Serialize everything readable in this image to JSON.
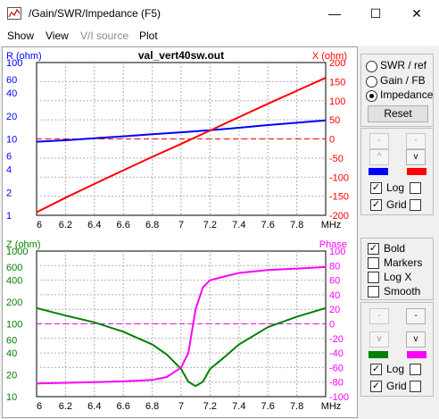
{
  "window": {
    "title": "/Gain/SWR/Impedance (F5)",
    "minimize_glyph": "—",
    "maximize_glyph": "☐",
    "close_glyph": "✕"
  },
  "menu": [
    "Show",
    "View",
    "V/I source",
    "Plot"
  ],
  "menu_disabled": [
    false,
    false,
    true,
    false
  ],
  "top_chart": {
    "title": "val_vert40sw.out",
    "left_label": "R (ohm)",
    "right_label": "X (ohm)",
    "left_ticks": [
      "100",
      "60",
      "40",
      "20",
      "10",
      "6",
      "4",
      "2",
      "1"
    ],
    "right_ticks": [
      "200",
      "150",
      "100",
      "50",
      "0",
      "-50",
      "-100",
      "-150",
      "-200"
    ],
    "x_ticks": [
      "6",
      "6.2",
      "6.4",
      "6.6",
      "6.8",
      "7",
      "7.2",
      "7.4",
      "7.6",
      "7.8",
      "MHz"
    ],
    "left_color": "#0000ff",
    "right_color": "#ff0000"
  },
  "bottom_chart": {
    "left_label": "Z (ohm)",
    "right_label": "Phase",
    "left_ticks": [
      "1000",
      "600",
      "400",
      "200",
      "100",
      "60",
      "40",
      "20",
      "10"
    ],
    "right_ticks": [
      "100",
      "80",
      "60",
      "40",
      "20",
      "0",
      "-20",
      "-40",
      "-60",
      "-80",
      "-100"
    ],
    "x_ticks": [
      "6",
      "6.2",
      "6.4",
      "6.6",
      "6.8",
      "7",
      "7.2",
      "7.4",
      "7.6",
      "7.8",
      "MHz"
    ],
    "left_color": "#008000",
    "right_color": "#ff00ff"
  },
  "chart_data": [
    {
      "type": "line",
      "title": "val_vert40sw.out",
      "xlabel": "MHz",
      "x": [
        6.0,
        6.2,
        6.4,
        6.6,
        6.8,
        7.0,
        7.2,
        7.4,
        7.6,
        7.8,
        8.0
      ],
      "series": [
        {
          "name": "R (ohm)",
          "axis": "left",
          "scale": "log",
          "values": [
            9.2,
            9.6,
            10.2,
            10.8,
            11.5,
            12.2,
            13.0,
            14.0,
            15.2,
            16.3,
            17.5
          ]
        },
        {
          "name": "X (ohm)",
          "axis": "right",
          "values": [
            -192,
            -154,
            -118,
            -82,
            -47,
            -13,
            22,
            57,
            92,
            126,
            160
          ]
        }
      ],
      "left_ylim": [
        1,
        100
      ],
      "right_ylim": [
        -200,
        200
      ],
      "xlim": [
        6.0,
        8.0
      ],
      "grid": true,
      "reference_lines": [
        {
          "axis": "right",
          "value": 0,
          "style": "dashed"
        }
      ]
    },
    {
      "type": "line",
      "xlabel": "MHz",
      "x": [
        6.0,
        6.2,
        6.4,
        6.6,
        6.8,
        6.9,
        7.0,
        7.05,
        7.1,
        7.15,
        7.2,
        7.3,
        7.4,
        7.6,
        7.8,
        8.0
      ],
      "series": [
        {
          "name": "Z (ohm)",
          "axis": "left",
          "scale": "log",
          "values": [
            165,
            130,
            105,
            78,
            52,
            38,
            24,
            16,
            14,
            16,
            24,
            35,
            52,
            90,
            125,
            165
          ]
        },
        {
          "name": "Phase",
          "axis": "right",
          "values": [
            -82,
            -81,
            -80,
            -79,
            -77,
            -73,
            -60,
            -40,
            20,
            50,
            60,
            65,
            70,
            74,
            76,
            78
          ]
        }
      ],
      "left_ylim": [
        10,
        1000
      ],
      "right_ylim": [
        -100,
        100
      ],
      "xlim": [
        6.0,
        8.0
      ],
      "grid": true,
      "reference_lines": [
        {
          "axis": "right",
          "value": 0,
          "style": "dashed"
        }
      ]
    }
  ],
  "side_top": {
    "radios": [
      "SWR / ref",
      "Gain / FB",
      "Impedance"
    ],
    "selected": 2,
    "reset_label": "Reset",
    "btn_minus": "-",
    "btn_up": "^",
    "btn_down": "v",
    "log_label": "Log",
    "grid_label": "Grid",
    "log_checked": true,
    "grid_checked": true,
    "swatch_left": "#0000ff",
    "swatch_right": "#ff0000"
  },
  "side_bottom": {
    "checks": [
      {
        "label": "Bold",
        "checked": true
      },
      {
        "label": "Markers",
        "checked": false
      },
      {
        "label": "Log X",
        "checked": false
      },
      {
        "label": "Smooth",
        "checked": false
      }
    ],
    "log_label": "Log",
    "grid_label": "Grid",
    "log_checked": true,
    "grid_checked": true,
    "swatch_left": "#008000",
    "swatch_right": "#ff00ff"
  }
}
